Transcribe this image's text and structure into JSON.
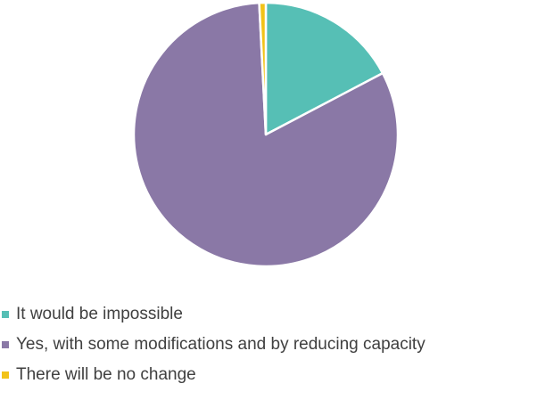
{
  "chart_data": {
    "type": "pie",
    "categories": [
      "It would be impossible",
      "Yes, with some modifications and by reducing capacity",
      "There will be no change"
    ],
    "values": [
      17.3,
      81.9,
      0.8
    ],
    "colors": [
      "#56bfb5",
      "#8a78a6",
      "#f2c318"
    ],
    "start_angle_deg": 0,
    "direction": "clockwise",
    "legend_position": "bottom-left",
    "title": ""
  }
}
